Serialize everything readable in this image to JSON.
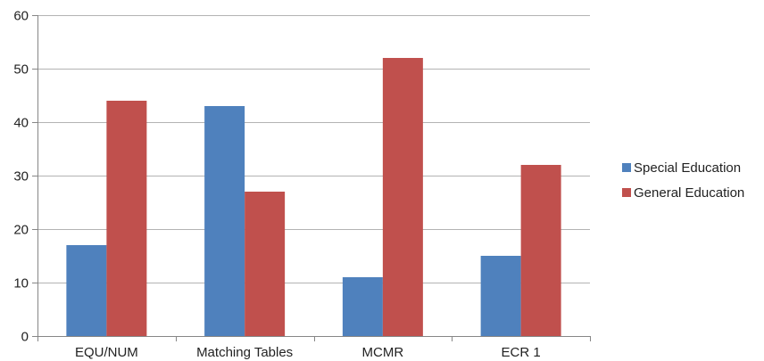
{
  "chart_data": {
    "type": "bar",
    "title": "",
    "xlabel": "",
    "ylabel": "",
    "categories": [
      "EQU/NUM",
      "Matching Tables",
      "MCMR",
      "ECR 1"
    ],
    "series": [
      {
        "name": "Special Education",
        "color": "#4F81BD",
        "values": [
          17,
          43,
          11,
          15
        ]
      },
      {
        "name": "General Education",
        "color": "#C0504D",
        "values": [
          44,
          27,
          52,
          32
        ]
      }
    ],
    "ylim": [
      0,
      60
    ],
    "yticks": [
      0,
      10,
      20,
      30,
      40,
      50,
      60
    ],
    "grid": true,
    "legend": "right"
  }
}
